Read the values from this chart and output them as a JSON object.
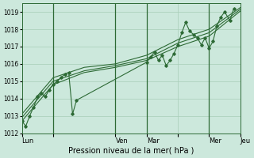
{
  "xlabel": "Pression niveau de la mer( hPa )",
  "bg_color": "#cce8dc",
  "grid_color": "#a8cdb8",
  "line_color": "#2d6a35",
  "sep_color": "#2d6a35",
  "ylim": [
    1012,
    1019.5
  ],
  "xlim": [
    0,
    7
  ],
  "yticks": [
    1012,
    1013,
    1014,
    1015,
    1016,
    1017,
    1018,
    1019
  ],
  "xtick_positions": [
    0,
    1,
    3,
    4,
    5,
    6,
    7
  ],
  "xtick_labels": [
    "Lun",
    "",
    "Ven",
    "Mar",
    "",
    "Mer",
    "Jeu"
  ],
  "vlines": [
    1,
    3,
    4,
    6
  ],
  "series_main_x": [
    0,
    0.125,
    0.25,
    0.375,
    0.5,
    0.625,
    0.75,
    0.875,
    1.0,
    1.125,
    1.25,
    1.375,
    1.5,
    1.625,
    1.75,
    4.0,
    4.125,
    4.25,
    4.375,
    4.5,
    4.625,
    4.75,
    4.875,
    5.0,
    5.125,
    5.25,
    5.375,
    5.5,
    5.625,
    5.75,
    5.875,
    6.0,
    6.125,
    6.25,
    6.375,
    6.5,
    6.667,
    6.792
  ],
  "series_main_y": [
    1012.7,
    1012.4,
    1013.0,
    1013.5,
    1014.1,
    1014.3,
    1014.1,
    1014.5,
    1014.8,
    1015.0,
    1015.2,
    1015.4,
    1015.5,
    1013.1,
    1013.9,
    1016.1,
    1016.4,
    1016.7,
    1016.2,
    1016.5,
    1015.9,
    1016.2,
    1016.6,
    1017.1,
    1017.8,
    1018.4,
    1017.9,
    1017.7,
    1017.5,
    1017.1,
    1017.5,
    1016.9,
    1017.3,
    1018.2,
    1018.7,
    1019.0,
    1018.5,
    1019.2
  ],
  "trend1_x": [
    0,
    1,
    2,
    3,
    4,
    5,
    6,
    7
  ],
  "trend1_y": [
    1012.7,
    1014.8,
    1015.5,
    1015.8,
    1016.2,
    1017.0,
    1017.6,
    1019.05
  ],
  "trend2_x": [
    0,
    1,
    2,
    3,
    4,
    5,
    6,
    7
  ],
  "trend2_y": [
    1012.9,
    1015.0,
    1015.6,
    1015.9,
    1016.3,
    1017.2,
    1017.8,
    1019.15
  ],
  "trend3_x": [
    0,
    1,
    2,
    3,
    4,
    5,
    6,
    7
  ],
  "trend3_y": [
    1013.1,
    1015.2,
    1015.8,
    1016.0,
    1016.5,
    1017.4,
    1018.0,
    1019.25
  ]
}
